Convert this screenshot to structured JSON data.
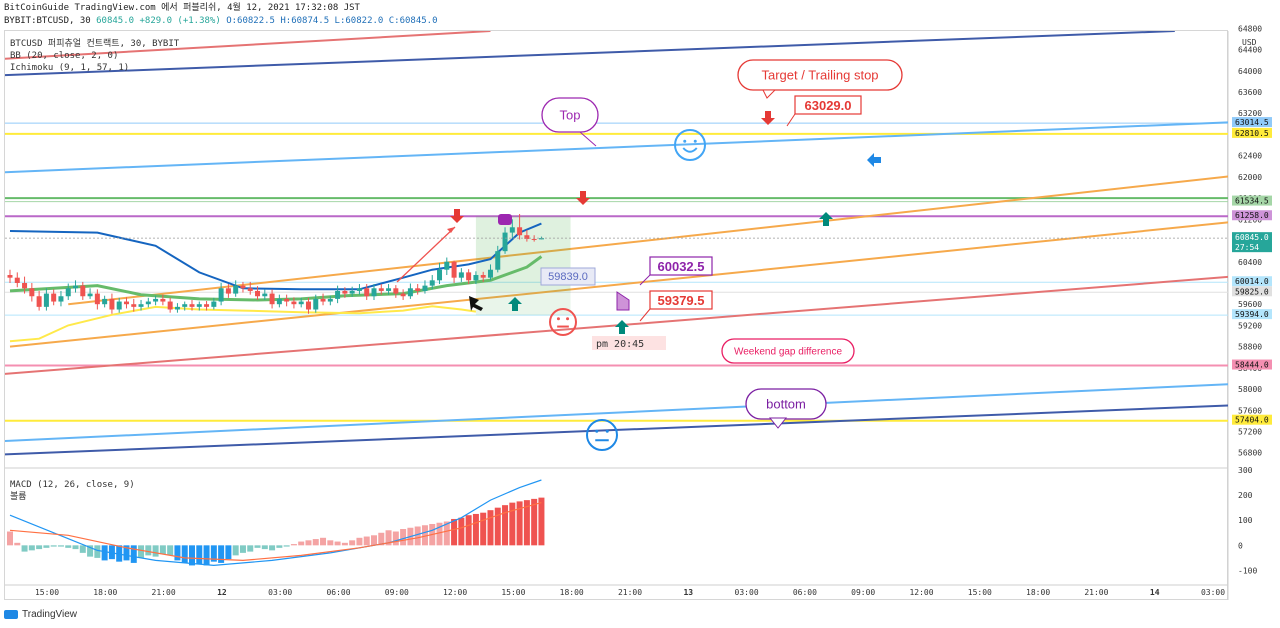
{
  "header": {
    "line1": "BitCoinGuide TradingView.com 에서 퍼블리쉬, 4월 12, 2021 17:32:08 JST",
    "symbol": "BYBIT:BTCUSD, 30",
    "last": "60845.0",
    "change": "+829.0 (+1.38%)",
    "ohlc": "O:60822.5 H:60874.5 L:60822.0 C:60845.0"
  },
  "indicators": {
    "main": "BTCUSD 퍼피츄얼 컨트랙트, 30, BYBIT",
    "bb": "BB (20, close, 2, 0)",
    "ichimoku": "Ichimoku (9, 1, 57, 1)",
    "macd": "MACD (12, 26, close, 9)",
    "macd_sub": "볼륨"
  },
  "colors": {
    "up": "#26a69a",
    "down": "#ef5350",
    "red_line": "#e57373",
    "navy_line": "#3f5ba9",
    "light_blue": "#64b5f6",
    "orange": "#f6a94b",
    "yellow": "#ffe94a",
    "green": "#66bb6a",
    "purple": "#9c27b0",
    "pink": "#f06292",
    "macd": "#2196f3",
    "signal": "#ff7043"
  },
  "footer": {
    "brand": "TradingView"
  },
  "chart_data": {
    "type": "candlestick",
    "title": "BTCUSD 30m",
    "price_axis": {
      "ylim": [
        56550,
        64750
      ],
      "ticks": [
        64800,
        64400,
        64000,
        63600,
        63200,
        62800,
        62400,
        62000,
        61600,
        61200,
        60800,
        60400,
        60000,
        59600,
        59200,
        58800,
        58400,
        58000,
        57600,
        57200,
        56800
      ],
      "unit_label": "USD"
    },
    "time_axis": {
      "labels": [
        "15:00",
        "18:00",
        "21:00",
        "12",
        "03:00",
        "06:00",
        "09:00",
        "12:00",
        "15:00",
        "18:00",
        "21:00",
        "13",
        "03:00",
        "06:00",
        "09:00",
        "12:00",
        "15:00",
        "18:00",
        "21:00",
        "14",
        "03:00"
      ]
    },
    "price_labels": [
      {
        "value": 63014.5,
        "text": "63014.5",
        "color": "#90caf9"
      },
      {
        "value": 62810.5,
        "text": "62810.5",
        "color": "#ffeb3b"
      },
      {
        "value": 61534.5,
        "text": "61534.5",
        "color": "#a5d6a7"
      },
      {
        "value": 61258.0,
        "text": "61258.0",
        "color": "#ce93d8"
      },
      {
        "value": 60845.0,
        "text": "60845.0",
        "sub": "27:54",
        "color": "#26a69a",
        "dark": true
      },
      {
        "value": 60014.0,
        "text": "60014.0",
        "color": "#b3e5fc"
      },
      {
        "value": 59825.0,
        "text": "59825.0",
        "color": "#e0e0e0"
      },
      {
        "value": 59394.0,
        "text": "59394.0",
        "color": "#b3e5fc"
      },
      {
        "value": 58444.0,
        "text": "58444.0",
        "color": "#f48fb1"
      },
      {
        "value": 57404.0,
        "text": "57404.0",
        "color": "#ffeb3b"
      }
    ],
    "candles": {
      "open": [
        60150,
        60100,
        60000,
        59900,
        59750,
        59550,
        59800,
        59650,
        59750,
        59900,
        59950,
        59750,
        59800,
        59600,
        59700,
        59500,
        59650,
        59600,
        59550,
        59600,
        59650,
        59700,
        59650,
        59500,
        59550,
        59600,
        59550,
        59600,
        59550,
        59650,
        59900,
        59800,
        59950,
        59900,
        59850,
        59750,
        59800,
        59600,
        59700,
        59650,
        59600,
        59650,
        59500,
        59700,
        59650,
        59700,
        59850,
        59800,
        59850,
        59900,
        59750,
        59900,
        59850,
        59900,
        59800,
        59750,
        59900,
        59850,
        59950,
        60050,
        60250,
        60400,
        60100,
        60200,
        60050,
        60150,
        60100,
        60250,
        60600,
        60950,
        61050,
        60900,
        60830,
        60822
      ],
      "close": [
        60100,
        60000,
        59900,
        59750,
        59550,
        59800,
        59650,
        59750,
        59900,
        59950,
        59750,
        59800,
        59600,
        59700,
        59500,
        59650,
        59600,
        59550,
        59600,
        59650,
        59700,
        59650,
        59500,
        59550,
        59600,
        59550,
        59600,
        59550,
        59650,
        59900,
        59800,
        59950,
        59900,
        59850,
        59750,
        59800,
        59600,
        59700,
        59650,
        59600,
        59650,
        59500,
        59700,
        59650,
        59700,
        59850,
        59800,
        59850,
        59900,
        59750,
        59900,
        59850,
        59900,
        59800,
        59750,
        59900,
        59850,
        59950,
        60050,
        60250,
        60400,
        60100,
        60200,
        60050,
        60150,
        60100,
        60250,
        60600,
        60950,
        61050,
        60900,
        60830,
        60822,
        60845
      ],
      "high": [
        60250,
        60200,
        60120,
        60000,
        59850,
        59900,
        59880,
        59850,
        59990,
        60050,
        60020,
        59900,
        59880,
        59760,
        59800,
        59720,
        59730,
        59700,
        59680,
        59720,
        59760,
        59780,
        59720,
        59620,
        59650,
        59680,
        59650,
        59660,
        59720,
        60000,
        59980,
        60050,
        60020,
        60020,
        59940,
        59880,
        59880,
        59780,
        59780,
        59730,
        59720,
        59720,
        59780,
        59800,
        59760,
        59950,
        59920,
        59930,
        59980,
        59980,
        59980,
        59980,
        59980,
        59960,
        59880,
        59990,
        59980,
        60050,
        60150,
        60380,
        60480,
        60420,
        60280,
        60260,
        60220,
        60210,
        60350,
        60700,
        61050,
        61200,
        61300,
        61000,
        60900,
        60874
      ],
      "low": [
        60000,
        59920,
        59800,
        59650,
        59480,
        59480,
        59580,
        59560,
        59680,
        59820,
        59680,
        59700,
        59500,
        59540,
        59420,
        59440,
        59520,
        59460,
        59480,
        59540,
        59580,
        59580,
        59440,
        59440,
        59480,
        59480,
        59480,
        59480,
        59500,
        59580,
        59720,
        59740,
        59820,
        59780,
        59680,
        59680,
        59520,
        59540,
        59560,
        59520,
        59540,
        59420,
        59440,
        59580,
        59580,
        59620,
        59720,
        59740,
        59780,
        59680,
        59680,
        59780,
        59780,
        59720,
        59680,
        59700,
        59780,
        59800,
        59880,
        59980,
        60150,
        60000,
        60020,
        59980,
        59980,
        60020,
        60050,
        60200,
        60550,
        60850,
        60820,
        60780,
        60780,
        60822
      ]
    },
    "bollinger_upper": [
      [
        0,
        60980
      ],
      [
        12,
        60950
      ],
      [
        20,
        60700
      ],
      [
        26,
        60200
      ],
      [
        32,
        59900
      ],
      [
        40,
        59880
      ],
      [
        48,
        59880
      ],
      [
        54,
        60100
      ],
      [
        58,
        60250
      ],
      [
        63,
        60350
      ],
      [
        66,
        60450
      ],
      [
        70,
        60950
      ],
      [
        73,
        61120
      ]
    ],
    "bollinger_lower": [
      [
        0,
        58900
      ],
      [
        4,
        58950
      ],
      [
        8,
        59200
      ],
      [
        14,
        59400
      ],
      [
        20,
        59550
      ],
      [
        26,
        59500
      ],
      [
        32,
        59480
      ],
      [
        40,
        59450
      ],
      [
        48,
        59430
      ],
      [
        54,
        59480
      ],
      [
        58,
        59560
      ],
      [
        62,
        59500
      ],
      [
        64,
        59460
      ]
    ],
    "bollinger_basis": [
      [
        0,
        59850
      ],
      [
        6,
        59900
      ],
      [
        12,
        59950
      ],
      [
        18,
        59780
      ],
      [
        26,
        59700
      ],
      [
        34,
        59680
      ],
      [
        40,
        59700
      ],
      [
        46,
        59760
      ],
      [
        54,
        59800
      ],
      [
        60,
        59950
      ],
      [
        66,
        60050
      ],
      [
        71,
        60300
      ],
      [
        73,
        60500
      ]
    ],
    "trend_lines": [
      {
        "name": "upper-red",
        "color": "#e57373",
        "from": {
          "t": -4,
          "price": 64200
        },
        "to": {
          "t": 66,
          "price": 64750
        }
      },
      {
        "name": "upper-navy",
        "color": "#3f5ba9",
        "from": {
          "t": -4,
          "price": 63900
        },
        "to": {
          "t": 160,
          "price": 64750
        }
      },
      {
        "name": "light-blue-top",
        "color": "#64b5f6",
        "from": {
          "t": -4,
          "price": 62070
        },
        "to": {
          "t": 200,
          "price": 63210
        }
      },
      {
        "name": "orange-upper",
        "color": "#f6a94b",
        "from": {
          "t": 8,
          "price": 59600
        },
        "to": {
          "t": 200,
          "price": 62500
        }
      },
      {
        "name": "orange-lower",
        "color": "#f6a94b",
        "from": {
          "t": 0,
          "price": 58800
        },
        "to": {
          "t": 200,
          "price": 61600
        }
      },
      {
        "name": "red-lower",
        "color": "#e57373",
        "from": {
          "t": -4,
          "price": 58250
        },
        "to": {
          "t": 200,
          "price": 60470
        }
      },
      {
        "name": "light-blue-bottom",
        "color": "#64b5f6",
        "from": {
          "t": -4,
          "price": 57000
        },
        "to": {
          "t": 200,
          "price": 58300
        }
      },
      {
        "name": "navy-bottom",
        "color": "#3f5ba9",
        "from": {
          "t": -4,
          "price": 56750
        },
        "to": {
          "t": 200,
          "price": 57870
        }
      }
    ],
    "horizontal_levels": [
      {
        "price": 63014.5,
        "color": "#90caf9"
      },
      {
        "price": 62810.5,
        "color": "#ffeb3b",
        "width": 2
      },
      {
        "price": 61600.0,
        "color": "#66bb6a",
        "width": 2
      },
      {
        "price": 61534.5,
        "color": "#a5d6a7"
      },
      {
        "price": 61258.0,
        "color": "#ba68c8",
        "width": 2
      },
      {
        "price": 60014.0,
        "color": "#b3e5fc"
      },
      {
        "price": 59825.0,
        "color": "#e0e0e0"
      },
      {
        "price": 59394.0,
        "color": "#b3e5fc"
      },
      {
        "price": 58444.0,
        "color": "#f48fb1",
        "width": 2
      },
      {
        "price": 57404.0,
        "color": "#ffeb3b",
        "width": 2
      }
    ],
    "position_box": {
      "t_from": 64,
      "t_to": 77,
      "entry": 59839.0,
      "target": 61258.0,
      "stop": 59394.0,
      "label": "59839.0"
    },
    "annotations": {
      "target_callout": "Target / Trailing stop",
      "target_price": "63029.0",
      "top_callout": "Top",
      "price_60032": "60032.5",
      "price_59379": "59379.5",
      "time_note": "pm 20:45",
      "weekend_gap": "Weekend gap difference",
      "bottom_callout": "bottom"
    },
    "macd_panel": {
      "ylim": [
        -150,
        300
      ],
      "ticks": [
        300,
        200,
        100,
        0,
        -100
      ],
      "histogram": [
        55,
        10,
        -25,
        -20,
        -15,
        -10,
        -5,
        -5,
        -10,
        -15,
        -30,
        -45,
        -50,
        -60,
        -55,
        -65,
        -60,
        -70,
        -50,
        -40,
        -45,
        -35,
        -40,
        -60,
        -70,
        -80,
        -75,
        -80,
        -65,
        -70,
        -55,
        -40,
        -30,
        -25,
        -10,
        -15,
        -20,
        -10,
        -5,
        5,
        15,
        20,
        25,
        30,
        20,
        15,
        10,
        20,
        30,
        35,
        40,
        50,
        60,
        55,
        65,
        70,
        75,
        80,
        85,
        90,
        95,
        105,
        110,
        120,
        125,
        130,
        140,
        150,
        160,
        170,
        175,
        180,
        185,
        190
      ],
      "macd_line": [
        [
          0,
          120
        ],
        [
          6,
          50
        ],
        [
          12,
          -20
        ],
        [
          20,
          -60
        ],
        [
          28,
          -80
        ],
        [
          36,
          -60
        ],
        [
          44,
          -30
        ],
        [
          52,
          10
        ],
        [
          58,
          60
        ],
        [
          62,
          110
        ],
        [
          66,
          180
        ],
        [
          70,
          230
        ],
        [
          73,
          260
        ]
      ],
      "signal_line": [
        [
          0,
          60
        ],
        [
          8,
          40
        ],
        [
          16,
          -10
        ],
        [
          24,
          -50
        ],
        [
          32,
          -60
        ],
        [
          40,
          -40
        ],
        [
          48,
          -10
        ],
        [
          56,
          30
        ],
        [
          62,
          70
        ],
        [
          68,
          130
        ],
        [
          73,
          170
        ]
      ]
    }
  }
}
